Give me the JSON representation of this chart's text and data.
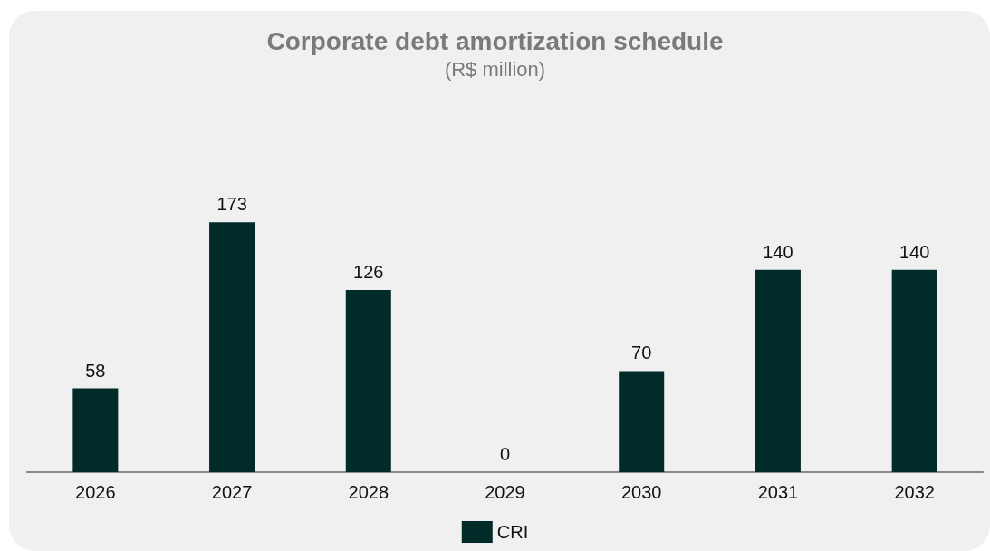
{
  "chart_data": {
    "type": "bar",
    "title": "Corporate debt amortization schedule",
    "subtitle": "(R$ million)",
    "categories": [
      "2026",
      "2027",
      "2028",
      "2029",
      "2030",
      "2031",
      "2032"
    ],
    "series": [
      {
        "name": "CRI",
        "color": "#002b28",
        "values": [
          58,
          173,
          126,
          0,
          70,
          140,
          140
        ]
      }
    ],
    "data_labels": true,
    "legend": "bottom"
  }
}
